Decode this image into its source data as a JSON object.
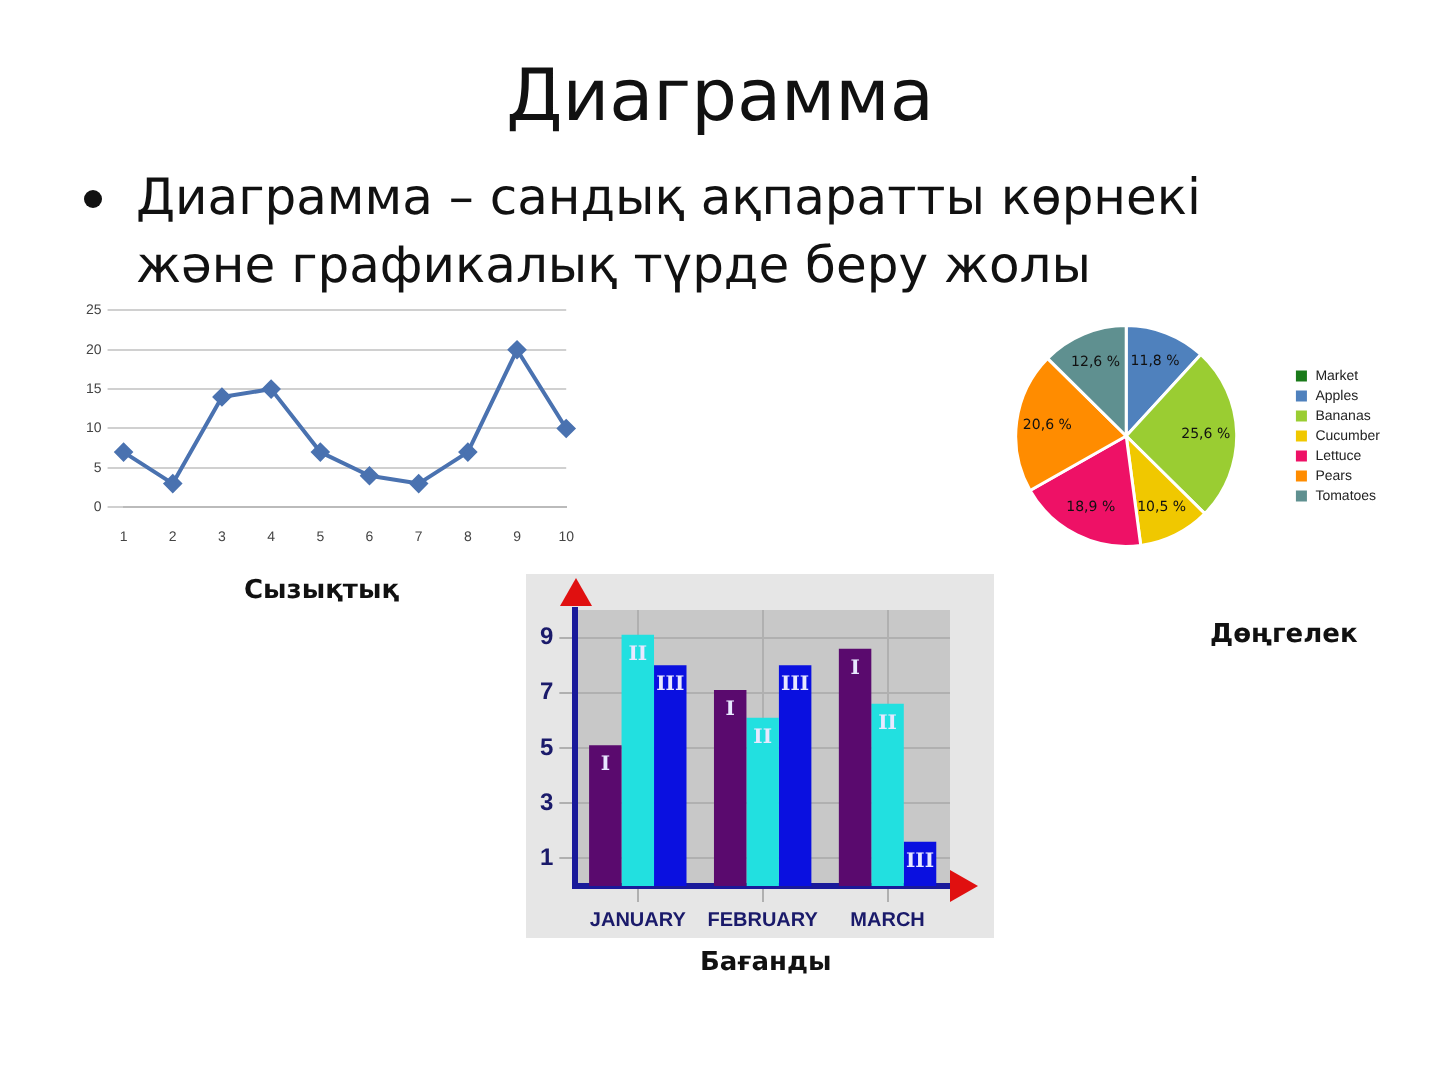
{
  "chart_data": [
    {
      "type": "line",
      "title": "Диаграмма",
      "subtitle": "Диаграмма – сандық ақпаратты көрнекі және графикалық түрде беру жолы",
      "annotations": [
        "Сызықтық"
      ],
      "categories": [
        "1",
        "2",
        "3",
        "4",
        "5",
        "6",
        "7",
        "8",
        "9",
        "10"
      ],
      "series": [
        {
          "color": "#4a72b0",
          "values": [
            7,
            3,
            14,
            15,
            7,
            4,
            3,
            7,
            20,
            10
          ]
        }
      ],
      "ylim": [
        0,
        25
      ],
      "yticks": [
        0,
        5,
        10,
        15,
        20,
        25
      ],
      "grid": "y",
      "marker": "diamond",
      "legend": false
    },
    {
      "type": "pie",
      "annotations": [
        "Дөңгелек"
      ],
      "categories": [
        "Market",
        "Apples",
        "Bananas",
        "Cucumber",
        "Lettuce",
        "Pears",
        "Tomatoes"
      ],
      "values": [
        0,
        11.8,
        25.6,
        10.5,
        18.9,
        20.6,
        12.6
      ],
      "value_labels": [
        null,
        "11,8 %",
        "25,6 %",
        "10,5 %",
        "18,9 %",
        "20,6 %",
        "12,6 %"
      ],
      "colors": [
        "#1a7a1a",
        "#4f81bd",
        "#9acd32",
        "#f0c800",
        "#ee1166",
        "#ff8c00",
        "#5f9090"
      ],
      "legend": "right"
    },
    {
      "type": "bar",
      "annotations": [
        "Бағанды"
      ],
      "categories": [
        "JANUARY",
        "FEBRUARY",
        "MARCH"
      ],
      "series": [
        {
          "name": "I",
          "color": "#5a0a6e",
          "values": [
            5.1,
            7.1,
            8.6
          ]
        },
        {
          "name": "II",
          "color": "#22e0e0",
          "values": [
            9.1,
            6.1,
            6.6
          ]
        },
        {
          "name": "III",
          "color": "#0a10e0",
          "values": [
            8.0,
            8.0,
            1.6
          ]
        }
      ],
      "ylim": [
        0,
        10
      ],
      "yticks": [
        1,
        3,
        5,
        7,
        9
      ],
      "grid": true,
      "legend": false
    }
  ]
}
